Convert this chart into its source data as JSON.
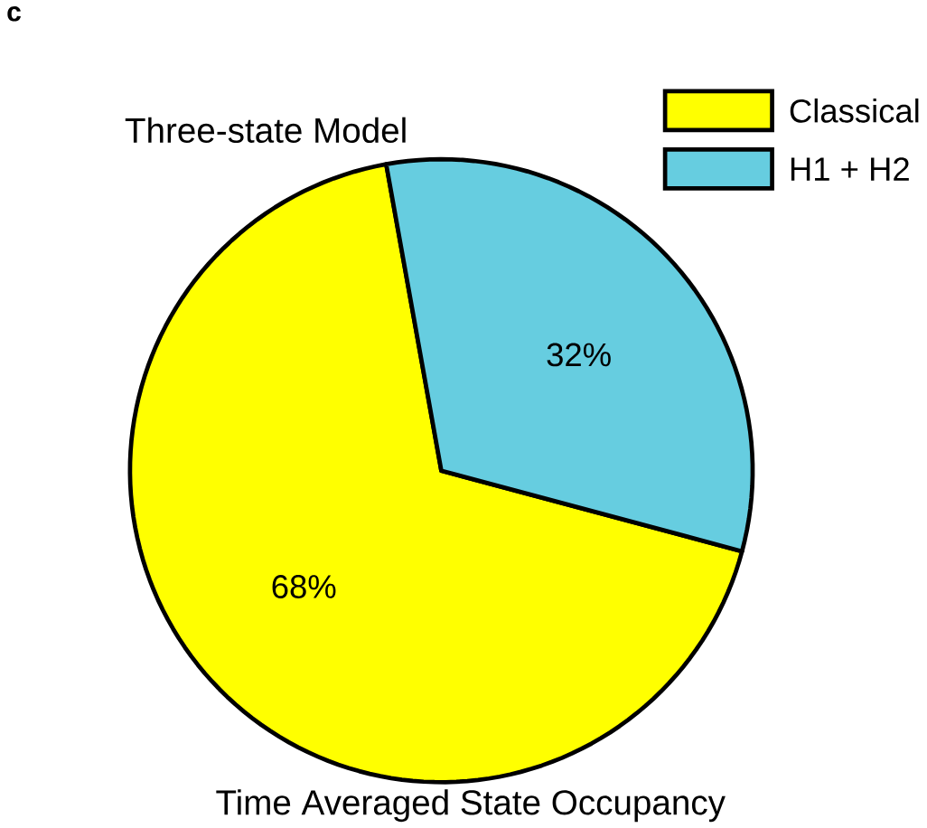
{
  "chart_data": {
    "type": "pie",
    "title": "Three-state Model",
    "xlabel": "Time Averaged State Occupancy",
    "categories": [
      "Classical",
      "H1 + H2"
    ],
    "values": [
      68,
      32
    ],
    "colors": [
      "#ffff00",
      "#66cde0"
    ],
    "value_labels": [
      "68%",
      "32%"
    ],
    "legend": "top right",
    "annotations": [
      "c"
    ]
  }
}
